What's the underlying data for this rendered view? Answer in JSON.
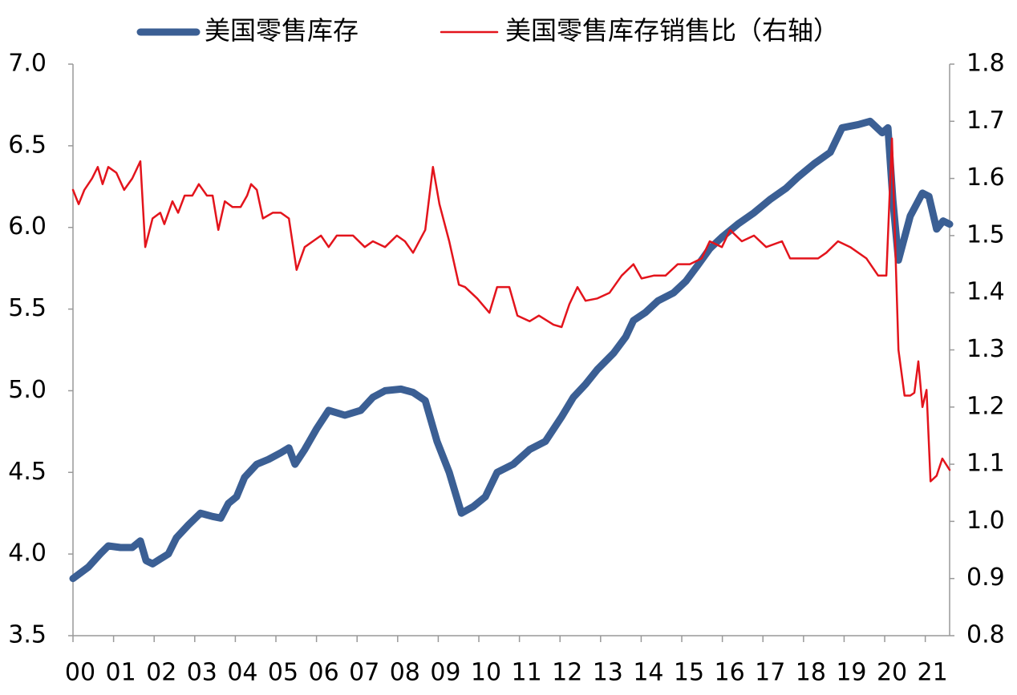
{
  "chart_data": {
    "type": "line",
    "legend": "top",
    "xlim": [
      2000,
      2021.6
    ],
    "xticks": [
      {
        "value": 2000,
        "label": "00"
      },
      {
        "value": 2001,
        "label": "01"
      },
      {
        "value": 2002,
        "label": "02"
      },
      {
        "value": 2003,
        "label": "03"
      },
      {
        "value": 2004,
        "label": "04"
      },
      {
        "value": 2005,
        "label": "05"
      },
      {
        "value": 2006,
        "label": "06"
      },
      {
        "value": 2007,
        "label": "07"
      },
      {
        "value": 2008,
        "label": "08"
      },
      {
        "value": 2009,
        "label": "09"
      },
      {
        "value": 2010,
        "label": "10"
      },
      {
        "value": 2011,
        "label": "11"
      },
      {
        "value": 2012,
        "label": "12"
      },
      {
        "value": 2013,
        "label": "13"
      },
      {
        "value": 2014,
        "label": "14"
      },
      {
        "value": 2015,
        "label": "15"
      },
      {
        "value": 2016,
        "label": "16"
      },
      {
        "value": 2017,
        "label": "17"
      },
      {
        "value": 2018,
        "label": "18"
      },
      {
        "value": 2019,
        "label": "19"
      },
      {
        "value": 2020,
        "label": "20"
      },
      {
        "value": 2021,
        "label": "21"
      }
    ],
    "ylim": [
      3.5,
      7.0
    ],
    "yticks": [
      {
        "value": 3.5,
        "label": "3.5"
      },
      {
        "value": 4.0,
        "label": "4.0"
      },
      {
        "value": 4.5,
        "label": "4.5"
      },
      {
        "value": 5.0,
        "label": "5.0"
      },
      {
        "value": 5.5,
        "label": "5.5"
      },
      {
        "value": 6.0,
        "label": "6.0"
      },
      {
        "value": 6.5,
        "label": "6.5"
      },
      {
        "value": 7.0,
        "label": "7.0"
      }
    ],
    "y2lim": [
      0.8,
      1.8
    ],
    "y2ticks": [
      {
        "value": 0.8,
        "label": "0.8"
      },
      {
        "value": 0.9,
        "label": "0.9"
      },
      {
        "value": 1.0,
        "label": "1.0"
      },
      {
        "value": 1.1,
        "label": "1.1"
      },
      {
        "value": 1.2,
        "label": "1.2"
      },
      {
        "value": 1.3,
        "label": "1.3"
      },
      {
        "value": 1.4,
        "label": "1.4"
      },
      {
        "value": 1.5,
        "label": "1.5"
      },
      {
        "value": 1.6,
        "label": "1.6"
      },
      {
        "value": 1.7,
        "label": "1.7"
      },
      {
        "value": 1.8,
        "label": "1.8"
      }
    ],
    "series": [
      {
        "name": "美国零售库存",
        "color": "#3b5f94",
        "width": 9,
        "axis": "y",
        "x": [
          2000,
          2000.38,
          2000.67,
          2000.87,
          2001.17,
          2001.46,
          2001.66,
          2001.8,
          2001.96,
          2002.15,
          2002.35,
          2002.55,
          2002.85,
          2003.14,
          2003.44,
          2003.64,
          2003.83,
          2004.03,
          2004.23,
          2004.53,
          2004.82,
          2005.12,
          2005.32,
          2005.47,
          2005.71,
          2006.01,
          2006.3,
          2006.7,
          2007.09,
          2007.39,
          2007.69,
          2008.08,
          2008.38,
          2008.68,
          2008.97,
          2009.27,
          2009.57,
          2009.86,
          2010.16,
          2010.45,
          2010.85,
          2011.25,
          2011.64,
          2012.04,
          2012.33,
          2012.63,
          2012.92,
          2013.32,
          2013.62,
          2013.81,
          2014.11,
          2014.41,
          2014.8,
          2015.1,
          2015.4,
          2015.69,
          2015.99,
          2016.38,
          2016.78,
          2017.17,
          2017.57,
          2017.87,
          2018.26,
          2018.66,
          2018.95,
          2019.35,
          2019.64,
          2019.94,
          2020.08,
          2020.2,
          2020.34,
          2020.63,
          2020.93,
          2021.09,
          2021.28,
          2021.44,
          2021.6
        ],
        "values": [
          3.85,
          3.92,
          4.0,
          4.05,
          4.04,
          4.04,
          4.08,
          3.96,
          3.94,
          3.97,
          4.0,
          4.1,
          4.18,
          4.25,
          4.23,
          4.22,
          4.31,
          4.35,
          4.47,
          4.55,
          4.58,
          4.62,
          4.65,
          4.55,
          4.64,
          4.77,
          4.88,
          4.85,
          4.88,
          4.96,
          5.0,
          5.01,
          4.99,
          4.94,
          4.69,
          4.5,
          4.25,
          4.29,
          4.35,
          4.5,
          4.55,
          4.64,
          4.69,
          4.84,
          4.96,
          5.04,
          5.13,
          5.23,
          5.33,
          5.43,
          5.48,
          5.55,
          5.6,
          5.67,
          5.77,
          5.87,
          5.94,
          6.02,
          6.09,
          6.17,
          6.24,
          6.31,
          6.39,
          6.46,
          6.61,
          6.63,
          6.65,
          6.58,
          6.61,
          6.17,
          5.8,
          6.07,
          6.21,
          6.19,
          5.99,
          6.04,
          6.02
        ]
      },
      {
        "name": "美国零售库存销售比（右轴）",
        "color": "#e3141c",
        "width": 2.5,
        "axis": "y2",
        "x": [
          2000,
          2000.14,
          2000.28,
          2000.47,
          2000.61,
          2000.73,
          2000.87,
          2001.07,
          2001.26,
          2001.46,
          2001.66,
          2001.78,
          2001.96,
          2002.15,
          2002.25,
          2002.45,
          2002.59,
          2002.75,
          2002.94,
          2003.1,
          2003.3,
          2003.44,
          2003.58,
          2003.74,
          2003.93,
          2004.13,
          2004.29,
          2004.39,
          2004.53,
          2004.68,
          2004.92,
          2005.12,
          2005.32,
          2005.51,
          2005.71,
          2005.91,
          2006.11,
          2006.3,
          2006.5,
          2006.9,
          2007.19,
          2007.39,
          2007.69,
          2007.98,
          2008.18,
          2008.38,
          2008.68,
          2008.87,
          2009.03,
          2009.27,
          2009.51,
          2009.66,
          2009.96,
          2010.26,
          2010.45,
          2010.75,
          2010.95,
          2011.25,
          2011.48,
          2011.84,
          2012.04,
          2012.23,
          2012.43,
          2012.63,
          2012.92,
          2013.22,
          2013.52,
          2013.81,
          2014.01,
          2014.31,
          2014.6,
          2014.9,
          2015.2,
          2015.49,
          2015.69,
          2015.99,
          2016.19,
          2016.48,
          2016.78,
          2017.08,
          2017.47,
          2017.67,
          2017.96,
          2018.36,
          2018.56,
          2018.85,
          2019.15,
          2019.55,
          2019.84,
          2020.04,
          2020.18,
          2020.34,
          2020.49,
          2020.63,
          2020.73,
          2020.83,
          2020.93,
          2021.03,
          2021.13,
          2021.28,
          2021.42,
          2021.6
        ],
        "values": [
          1.58,
          1.555,
          1.58,
          1.6,
          1.62,
          1.59,
          1.62,
          1.61,
          1.58,
          1.6,
          1.63,
          1.48,
          1.53,
          1.54,
          1.52,
          1.56,
          1.54,
          1.57,
          1.57,
          1.59,
          1.57,
          1.57,
          1.51,
          1.56,
          1.55,
          1.55,
          1.57,
          1.59,
          1.58,
          1.53,
          1.54,
          1.54,
          1.53,
          1.44,
          1.48,
          1.49,
          1.5,
          1.48,
          1.5,
          1.5,
          1.48,
          1.49,
          1.48,
          1.5,
          1.49,
          1.47,
          1.51,
          1.62,
          1.555,
          1.49,
          1.414,
          1.41,
          1.39,
          1.365,
          1.41,
          1.41,
          1.36,
          1.35,
          1.36,
          1.344,
          1.34,
          1.38,
          1.41,
          1.386,
          1.39,
          1.4,
          1.43,
          1.45,
          1.425,
          1.43,
          1.43,
          1.45,
          1.45,
          1.46,
          1.49,
          1.48,
          1.51,
          1.49,
          1.5,
          1.48,
          1.49,
          1.46,
          1.46,
          1.46,
          1.47,
          1.49,
          1.48,
          1.46,
          1.43,
          1.43,
          1.67,
          1.3,
          1.22,
          1.22,
          1.225,
          1.28,
          1.2,
          1.23,
          1.07,
          1.08,
          1.11,
          1.09
        ]
      }
    ]
  }
}
